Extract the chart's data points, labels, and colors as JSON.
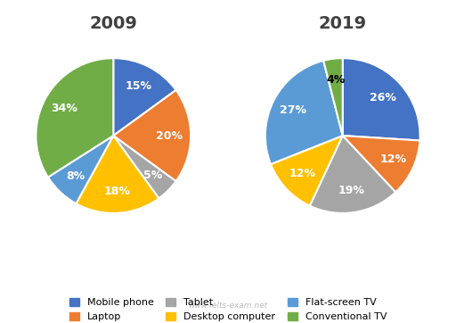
{
  "title_2009": "2009",
  "title_2019": "2019",
  "categories": [
    "Mobile phone",
    "Laptop",
    "Tablet",
    "Desktop computer",
    "Flat-screen TV",
    "Conventional TV"
  ],
  "colors": [
    "#4472C4",
    "#ED7D31",
    "#A5A5A5",
    "#FFC000",
    "#5B9BD5",
    "#70AD47"
  ],
  "values_2009": [
    15,
    20,
    5,
    18,
    8,
    34
  ],
  "values_2019": [
    26,
    12,
    19,
    12,
    27,
    4
  ],
  "pct_colors_2009": [
    "white",
    "white",
    "white",
    "white",
    "white",
    "white"
  ],
  "pct_colors_2019": [
    "white",
    "white",
    "white",
    "white",
    "white",
    "black"
  ],
  "startangle_2009": 90,
  "startangle_2019": 90,
  "background_color": "#FFFFFF",
  "watermark": "www.ielts-exam.net",
  "title_fontsize": 14,
  "label_fontsize": 9,
  "legend_fontsize": 8,
  "legend_order": [
    0,
    1,
    2,
    3,
    4,
    5
  ]
}
